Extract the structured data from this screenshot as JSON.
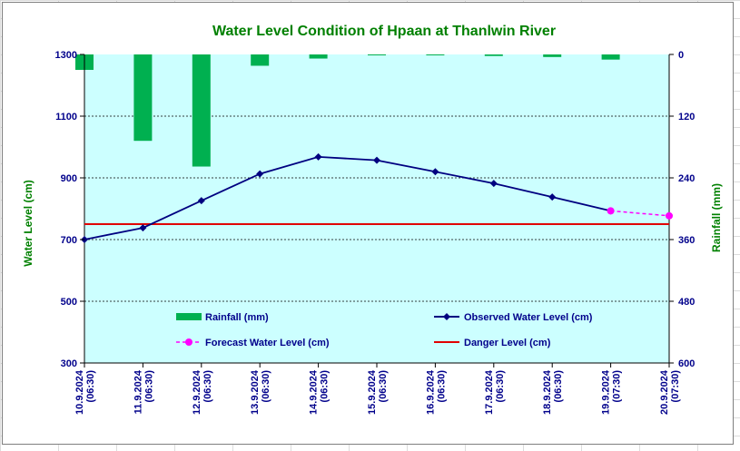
{
  "chart_data": {
    "type": "bar+line",
    "title": "Water Level Condition of Hpaan at Thanlwin River",
    "ylabel_left": "Water Level (cm)",
    "ylabel_right": "Rainfall (mm)",
    "ylim_left": [
      300,
      1300
    ],
    "yticks_left": [
      "1300",
      "1100",
      "900",
      "700",
      "500",
      "300"
    ],
    "ylim_right": [
      0,
      600
    ],
    "yticks_right": [
      "0",
      "120",
      "240",
      "360",
      "480",
      "600"
    ],
    "right_axis_inverted": true,
    "categories": [
      [
        "10.9.2024",
        "(06:30)"
      ],
      [
        "11.9.2024",
        "(06:30)"
      ],
      [
        "12.9.2024",
        "(06:30)"
      ],
      [
        "13.9.2024",
        "(06:30)"
      ],
      [
        "14.9.2024",
        "(06:30)"
      ],
      [
        "15.9.2024",
        "(06:30)"
      ],
      [
        "16.9.2024",
        "(06:30)"
      ],
      [
        "17.9.2024",
        "(06:30)"
      ],
      [
        "18.9.2024",
        "(06:30)"
      ],
      [
        "19.9.2024",
        "(07:30)"
      ],
      [
        "20.9.2024",
        "(07:30)"
      ]
    ],
    "grid": true,
    "legend_placement": "inside-bottom",
    "series": [
      {
        "name": "Rainfall (mm)",
        "type": "bar",
        "axis": "right",
        "color": "#00b050",
        "values": [
          30,
          168,
          218,
          22,
          8,
          0,
          1,
          3,
          5,
          10,
          null
        ]
      },
      {
        "name": "Observed Water Level (cm)",
        "type": "line",
        "axis": "left",
        "color": "#000080",
        "values": [
          700,
          738,
          826,
          913,
          968,
          957,
          920,
          882,
          838,
          793,
          null
        ]
      },
      {
        "name": "Forecast Water Level (cm)",
        "type": "line-dashed",
        "axis": "left",
        "color": "#ff00ff",
        "values": [
          null,
          null,
          null,
          null,
          null,
          null,
          null,
          null,
          null,
          793,
          777
        ]
      },
      {
        "name": "Danger Level (cm)",
        "type": "hline",
        "axis": "left",
        "color": "#e00000",
        "value": 750
      }
    ]
  },
  "colors": {
    "plot_background": "#ccffff",
    "title": "#008000",
    "ticks": "#00008b"
  }
}
